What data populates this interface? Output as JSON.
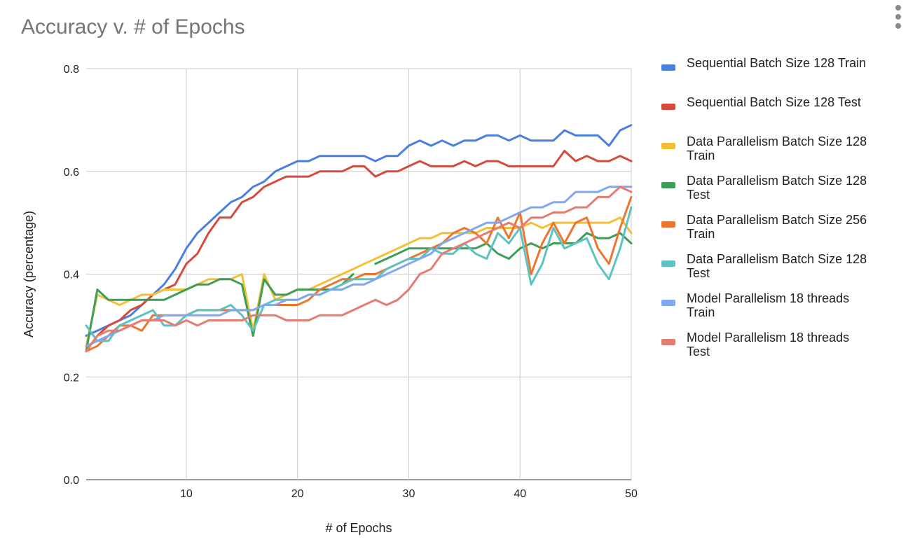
{
  "menu": {
    "icon": "more-vert-icon"
  },
  "chart_data": {
    "type": "line",
    "title": "Accuracy v. # of Epochs",
    "xlabel": "# of Epochs",
    "ylabel": "Accuracy (percentage)",
    "xlim": [
      1,
      50
    ],
    "ylim": [
      0,
      0.8
    ],
    "xticks": [
      10,
      20,
      30,
      40,
      50
    ],
    "yticks": [
      0.0,
      0.2,
      0.4,
      0.6,
      0.8
    ],
    "ytick_labels": [
      "0.0",
      "0.2",
      "0.4",
      "0.6",
      "0.8"
    ],
    "xtick_labels": [
      "10",
      "20",
      "30",
      "40",
      "50"
    ],
    "grid": true,
    "legend_position": "right",
    "x": [
      1,
      2,
      3,
      4,
      5,
      6,
      7,
      8,
      9,
      10,
      11,
      12,
      13,
      14,
      15,
      16,
      17,
      18,
      19,
      20,
      21,
      22,
      23,
      24,
      25,
      26,
      27,
      28,
      29,
      30,
      31,
      32,
      33,
      34,
      35,
      36,
      37,
      38,
      39,
      40,
      41,
      42,
      43,
      44,
      45,
      46,
      47,
      48,
      49,
      50
    ],
    "series": [
      {
        "name": "Sequential Batch Size 128 Train",
        "color": "#4a7fe0",
        "values": [
          0.28,
          0.29,
          0.3,
          0.31,
          0.32,
          0.34,
          0.36,
          0.38,
          0.41,
          0.45,
          0.48,
          0.5,
          0.52,
          0.54,
          0.55,
          0.57,
          0.58,
          0.6,
          0.61,
          0.62,
          0.62,
          0.63,
          0.63,
          0.63,
          0.63,
          0.63,
          0.62,
          0.63,
          0.63,
          0.65,
          0.66,
          0.65,
          0.66,
          0.65,
          0.66,
          0.66,
          0.67,
          0.67,
          0.66,
          0.67,
          0.66,
          0.66,
          0.66,
          0.68,
          0.67,
          0.67,
          0.67,
          0.65,
          0.68,
          0.69
        ]
      },
      {
        "name": "Sequential Batch Size 128 Test",
        "color": "#d44b3d",
        "values": [
          0.25,
          0.28,
          0.3,
          0.31,
          0.33,
          0.34,
          0.36,
          0.37,
          0.38,
          0.42,
          0.44,
          0.48,
          0.51,
          0.51,
          0.54,
          0.55,
          0.57,
          0.58,
          0.59,
          0.59,
          0.59,
          0.6,
          0.6,
          0.6,
          0.61,
          0.61,
          0.59,
          0.6,
          0.6,
          0.61,
          0.62,
          0.61,
          0.61,
          0.61,
          0.62,
          0.61,
          0.62,
          0.62,
          0.61,
          0.61,
          0.61,
          0.61,
          0.61,
          0.64,
          0.62,
          0.63,
          0.62,
          0.62,
          0.63,
          0.62
        ]
      },
      {
        "name": "Data Parallelism Batch Size 128 Train",
        "color": "#f2c037",
        "values": [
          0.26,
          0.36,
          0.35,
          0.34,
          0.35,
          0.36,
          0.36,
          0.37,
          0.37,
          0.37,
          0.38,
          0.39,
          0.39,
          0.39,
          0.4,
          0.29,
          0.4,
          0.35,
          0.36,
          0.37,
          0.37,
          0.38,
          0.39,
          0.4,
          0.41,
          0.42,
          0.43,
          0.44,
          0.45,
          0.46,
          0.47,
          0.47,
          0.48,
          0.48,
          0.48,
          0.48,
          0.49,
          0.49,
          0.49,
          0.49,
          0.5,
          0.49,
          0.5,
          0.5,
          0.5,
          0.5,
          0.5,
          0.5,
          0.51,
          0.48
        ]
      },
      {
        "name": "Data Parallelism Batch Size 128 Test",
        "color": "#3f9e56",
        "values": [
          0.25,
          0.37,
          0.35,
          0.35,
          0.35,
          0.35,
          0.35,
          0.35,
          0.36,
          0.37,
          0.38,
          0.38,
          0.39,
          0.39,
          0.38,
          0.28,
          0.39,
          0.36,
          0.36,
          0.37,
          0.37,
          0.37,
          0.37,
          0.38,
          0.4,
          null,
          0.42,
          0.43,
          0.44,
          0.45,
          0.45,
          0.45,
          0.45,
          0.45,
          0.45,
          0.45,
          0.46,
          0.44,
          0.43,
          0.45,
          0.46,
          0.45,
          0.46,
          0.46,
          0.46,
          0.48,
          0.47,
          0.47,
          0.48,
          0.46
        ]
      },
      {
        "name": "Data Parallelism Batch Size 256 Train",
        "color": "#ee7530",
        "values": [
          0.25,
          0.26,
          0.28,
          0.3,
          0.3,
          0.29,
          0.32,
          0.32,
          0.32,
          0.32,
          0.33,
          0.33,
          0.33,
          0.33,
          0.33,
          0.33,
          0.34,
          0.34,
          0.34,
          0.34,
          0.35,
          0.37,
          0.38,
          0.39,
          0.39,
          0.4,
          0.4,
          0.41,
          0.42,
          0.43,
          0.44,
          0.45,
          0.46,
          0.48,
          0.49,
          0.48,
          0.46,
          0.51,
          0.47,
          0.52,
          0.4,
          0.46,
          0.5,
          0.46,
          0.5,
          0.51,
          0.45,
          0.42,
          0.49,
          0.55
        ]
      },
      {
        "name": "Data Parallelism Batch Size 128 Test",
        "color": "#5cc2c2",
        "values": [
          0.3,
          0.27,
          0.27,
          0.3,
          0.31,
          0.32,
          0.33,
          0.3,
          0.3,
          0.32,
          0.33,
          0.33,
          0.33,
          0.34,
          0.32,
          0.29,
          0.34,
          0.35,
          0.35,
          0.35,
          0.36,
          0.36,
          0.37,
          0.38,
          0.39,
          0.39,
          0.39,
          0.41,
          0.42,
          0.43,
          0.43,
          0.45,
          0.44,
          0.44,
          0.46,
          0.44,
          0.43,
          0.48,
          0.46,
          0.49,
          0.38,
          0.42,
          0.49,
          0.45,
          0.46,
          0.47,
          0.42,
          0.39,
          0.45,
          0.53
        ]
      },
      {
        "name": "Model Parallelism 18 threads Train",
        "color": "#7fa8f0",
        "values": [
          0.26,
          0.27,
          0.28,
          0.29,
          0.3,
          0.31,
          0.31,
          0.32,
          0.32,
          0.32,
          0.32,
          0.32,
          0.32,
          0.33,
          0.33,
          0.33,
          0.34,
          0.34,
          0.35,
          0.35,
          0.36,
          0.36,
          0.37,
          0.37,
          0.38,
          0.38,
          0.39,
          0.4,
          0.41,
          0.42,
          0.43,
          0.44,
          0.46,
          0.47,
          0.48,
          0.49,
          0.5,
          0.5,
          0.51,
          0.52,
          0.53,
          0.53,
          0.54,
          0.54,
          0.56,
          0.56,
          0.56,
          0.57,
          0.57,
          0.57
        ]
      },
      {
        "name": "Model Parallelism 18 threads Test",
        "color": "#e57c74",
        "values": [
          0.25,
          0.28,
          0.29,
          0.29,
          0.3,
          0.31,
          0.31,
          0.31,
          0.3,
          0.31,
          0.3,
          0.31,
          0.31,
          0.31,
          0.31,
          0.32,
          0.32,
          0.32,
          0.31,
          0.31,
          0.31,
          0.32,
          0.32,
          0.32,
          0.33,
          0.34,
          0.35,
          0.34,
          0.35,
          0.37,
          0.4,
          0.41,
          0.44,
          0.45,
          0.46,
          0.47,
          0.48,
          0.49,
          0.5,
          0.49,
          0.51,
          0.51,
          0.52,
          0.52,
          0.53,
          0.53,
          0.55,
          0.55,
          0.57,
          0.56
        ]
      }
    ],
    "legend_labels": [
      [
        "Sequential Batch Size 128 Train"
      ],
      [
        "Sequential Batch Size 128 Test"
      ],
      [
        "Data Parallelism Batch Size 128",
        "Train"
      ],
      [
        "Data Parallelism Batch Size 128",
        "Test"
      ],
      [
        "Data Parallelism Batch Size 256",
        "Train"
      ],
      [
        "Data Parallelism Batch Size 128",
        "Test"
      ],
      [
        "Model Parallelism 18 threads",
        "Train"
      ],
      [
        "Model Parallelism 18 threads",
        "Test"
      ]
    ]
  }
}
